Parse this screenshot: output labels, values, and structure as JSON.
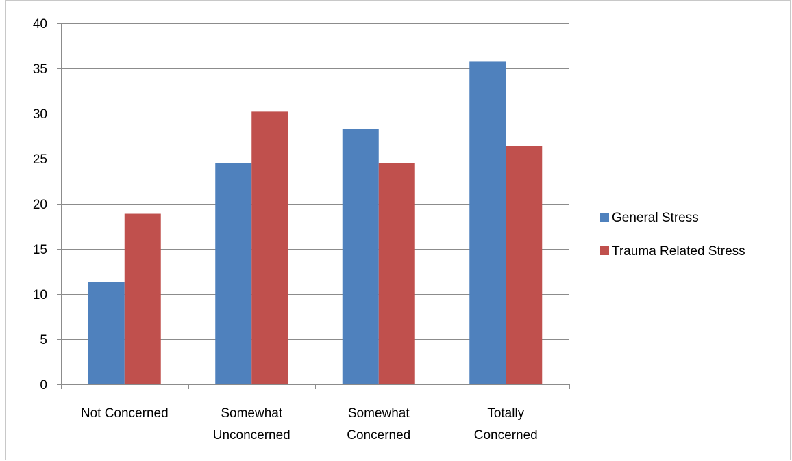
{
  "chart_data": {
    "type": "bar",
    "categories": [
      [
        "Not Concerned"
      ],
      [
        "Somewhat",
        "Unconcerned"
      ],
      [
        "Somewhat",
        "Concerned"
      ],
      [
        "Totally",
        "Concerned"
      ]
    ],
    "series": [
      {
        "name": "General Stress",
        "values": [
          11.3,
          24.5,
          28.3,
          35.8
        ],
        "color": "#4f81bd"
      },
      {
        "name": "Trauma Related Stress",
        "values": [
          18.9,
          30.2,
          24.5,
          26.4
        ],
        "color": "#c0504d"
      }
    ],
    "ylim": [
      0,
      40
    ],
    "yticks": [
      0,
      5,
      10,
      15,
      20,
      25,
      30,
      35,
      40
    ],
    "grid": true,
    "legend": "right",
    "title": "",
    "xlabel": "",
    "ylabel": ""
  }
}
